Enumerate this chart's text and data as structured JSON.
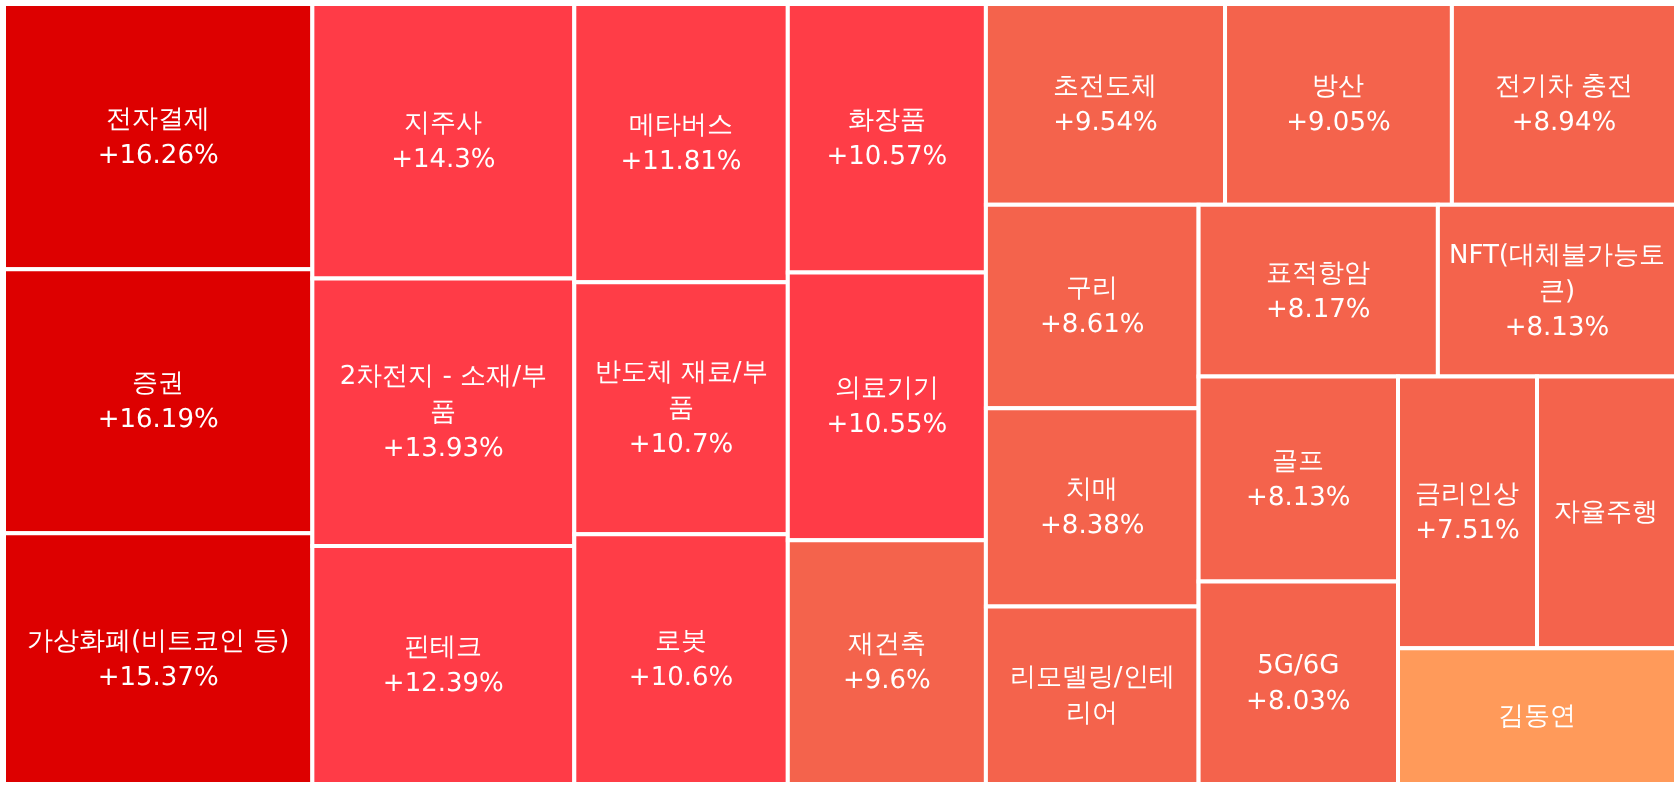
{
  "chart_data": {
    "type": "other",
    "categories": [
      "전자결제",
      "증권",
      "가상화폐(비트코인 등)",
      "지주사",
      "2차전지 - 소재/부품",
      "핀테크",
      "메타버스",
      "반도체 재료/부품",
      "로봇",
      "화장품",
      "의료기기",
      "재건축",
      "초전도체",
      "방산",
      "전기차 충전",
      "구리",
      "치매",
      "리모델링/인테리어",
      "표적항암",
      "NFT(대체불가능토큰)",
      "골프",
      "5G/6G",
      "금리인상",
      "자율주행",
      "김동연"
    ],
    "values": [
      16.26,
      16.19,
      15.37,
      14.3,
      13.93,
      12.39,
      11.81,
      10.7,
      10.6,
      10.57,
      10.55,
      9.6,
      9.54,
      9.05,
      8.94,
      8.61,
      8.38,
      null,
      8.17,
      8.13,
      8.13,
      8.03,
      7.51,
      null,
      null
    ],
    "value_labels": [
      "+16.26%",
      "+16.19%",
      "+15.37%",
      "+14.3%",
      "+13.93%",
      "+12.39%",
      "+11.81%",
      "+10.7%",
      "+10.6%",
      "+10.57%",
      "+10.55%",
      "+9.6%",
      "+9.54%",
      "+9.05%",
      "+8.94%",
      "+8.61%",
      "+8.38%",
      null,
      "+8.17%",
      "+8.13%",
      "+8.13%",
      "+8.03%",
      "+7.51%",
      null,
      null
    ],
    "colors": [
      "#dd0000",
      "#dd0000",
      "#dd0000",
      "#ff3b47",
      "#ff3b47",
      "#ff3b47",
      "#ff3d47",
      "#ff3d47",
      "#ff3d47",
      "#ff3d47",
      "#ff3b47",
      "#f4634c",
      "#f4634c",
      "#f4634c",
      "#f4634c",
      "#f4634c",
      "#f4634c",
      "#f4634c",
      "#f4634c",
      "#f4634c",
      "#f4634c",
      "#f4634c",
      "#f4634c",
      "#f4634c",
      "#ff9a5a"
    ]
  }
}
